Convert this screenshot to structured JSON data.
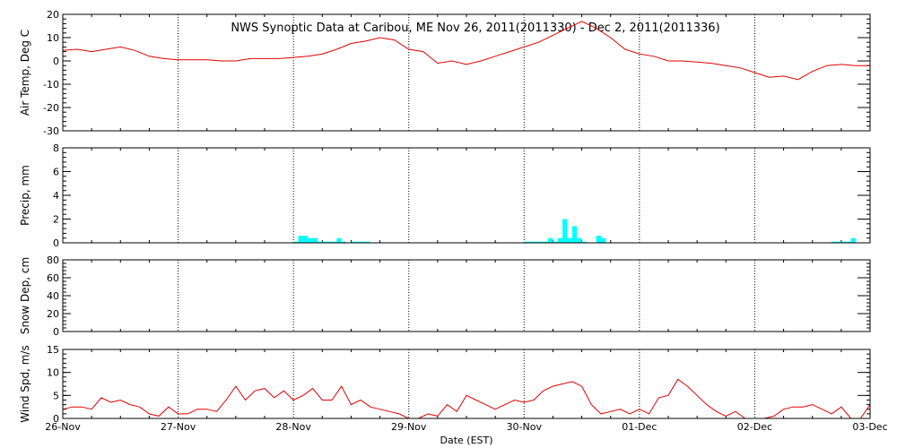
{
  "title": "NWS Synoptic Data at Caribou, ME   Nov 26, 2011(2011330) - Dec  2, 2011(2011336)",
  "xlabel": "Date (EST)",
  "x_range": [
    "2011-11-26 00:00",
    "2011-12-03 00:00"
  ],
  "x_ticks": [
    "26-Nov",
    "27-Nov",
    "28-Nov",
    "29-Nov",
    "30-Nov",
    "01-Dec",
    "02-Dec",
    "03-Dec"
  ],
  "colors": {
    "line": "#e00000",
    "bar": "#00ffff",
    "axis": "#000000"
  },
  "chart_data": [
    {
      "type": "line",
      "name": "air_temp",
      "ylabel": "Air Temp, Deg C",
      "ylim": [
        -30,
        20
      ],
      "y_ticks": [
        20,
        10,
        0,
        -10,
        -20,
        -30
      ],
      "x_unit": "hours since 2011-11-26 00:00",
      "x": [
        0,
        3,
        6,
        9,
        12,
        15,
        18,
        21,
        24,
        27,
        30,
        33,
        36,
        39,
        42,
        45,
        48,
        51,
        54,
        57,
        60,
        63,
        66,
        69,
        72,
        75,
        78,
        81,
        84,
        87,
        90,
        93,
        96,
        99,
        102,
        105,
        108,
        111,
        114,
        117,
        120,
        123,
        126,
        129,
        132,
        135,
        138,
        141,
        144,
        147,
        150,
        153,
        156,
        159,
        162,
        165,
        168
      ],
      "values": [
        4.5,
        5,
        4,
        5,
        6,
        4.5,
        2,
        1,
        0.5,
        0.5,
        0.5,
        0,
        0,
        1,
        1,
        1,
        1.5,
        2,
        3,
        5,
        7.5,
        8.5,
        10,
        9,
        5,
        4,
        -1,
        0,
        -1.5,
        0,
        2,
        4,
        6,
        8,
        11,
        14,
        17,
        14,
        10,
        5,
        3,
        2,
        0,
        0,
        -0.5,
        -1,
        -2,
        -3,
        -5,
        -7,
        -6.5,
        -8,
        -4.5,
        -2,
        -1.5,
        -2,
        -2
      ]
    },
    {
      "type": "bar",
      "name": "precip",
      "ylabel": "Precip, mm",
      "ylim": [
        0,
        8
      ],
      "y_ticks": [
        8,
        6,
        4,
        2,
        0
      ],
      "x_unit": "hours since 2011-11-26 00:00",
      "x": [
        48,
        49,
        50,
        51,
        52,
        53,
        54,
        55,
        56,
        57,
        58,
        60,
        61,
        62,
        63,
        96,
        97,
        98,
        99,
        100,
        101,
        102,
        103,
        104,
        105,
        106,
        107,
        108,
        111,
        112,
        160,
        161,
        162,
        163,
        164
      ],
      "values": [
        0.1,
        0.6,
        0.6,
        0.4,
        0.4,
        0.1,
        0.1,
        0.1,
        0.1,
        0.4,
        0.1,
        0.1,
        0.1,
        0.1,
        0.1,
        0.1,
        0.1,
        0.1,
        0.1,
        0.1,
        0.4,
        0.1,
        0.4,
        2,
        0.4,
        1.4,
        0.4,
        0.1,
        0.6,
        0.4,
        0.1,
        0.1,
        0.1,
        0.1,
        0.4
      ]
    },
    {
      "type": "line",
      "name": "snow_depth",
      "ylabel": "Snow Dep, cm",
      "ylim": [
        0,
        80
      ],
      "y_ticks": [
        80,
        60,
        40,
        20,
        0
      ],
      "x": [],
      "values": []
    },
    {
      "type": "line",
      "name": "wind_speed",
      "ylabel": "Wind Spd, m/s",
      "ylim": [
        0,
        15
      ],
      "y_ticks": [
        15,
        10,
        5,
        0
      ],
      "x_unit": "hours since 2011-11-26 00:00",
      "x": [
        0,
        2,
        4,
        6,
        8,
        10,
        12,
        14,
        16,
        18,
        20,
        22,
        24,
        26,
        28,
        30,
        32,
        34,
        36,
        38,
        40,
        42,
        44,
        46,
        48,
        50,
        52,
        54,
        56,
        58,
        60,
        62,
        64,
        66,
        68,
        70,
        72,
        74,
        76,
        78,
        80,
        82,
        84,
        86,
        88,
        90,
        92,
        94,
        96,
        98,
        100,
        102,
        104,
        106,
        108,
        110,
        112,
        114,
        116,
        118,
        120,
        122,
        124,
        126,
        128,
        130,
        132,
        134,
        136,
        138,
        140,
        142,
        144,
        146,
        148,
        150,
        152,
        154,
        156,
        158,
        160,
        162,
        164,
        166,
        168
      ],
      "values": [
        2,
        2.5,
        2.5,
        2,
        4.5,
        3.5,
        4,
        3,
        2.5,
        1,
        0.5,
        2.5,
        1,
        1,
        2,
        2,
        1.5,
        4,
        7,
        4,
        6,
        6.5,
        4.5,
        6,
        4,
        5,
        6.5,
        4,
        4,
        7,
        3,
        4,
        2.5,
        2,
        1.5,
        1,
        0,
        0,
        1,
        0.5,
        3,
        1.5,
        5,
        4,
        3,
        2,
        3,
        4,
        3.5,
        4,
        6,
        7,
        7.5,
        8,
        7,
        3,
        1,
        1.5,
        2,
        1,
        2,
        1,
        4.5,
        5,
        8.5,
        7,
        5,
        3,
        1.5,
        0.5,
        1.5,
        0,
        0,
        0,
        0.5,
        2,
        2.5,
        2.5,
        3,
        2,
        1,
        2.5,
        0,
        0,
        3
      ]
    }
  ]
}
